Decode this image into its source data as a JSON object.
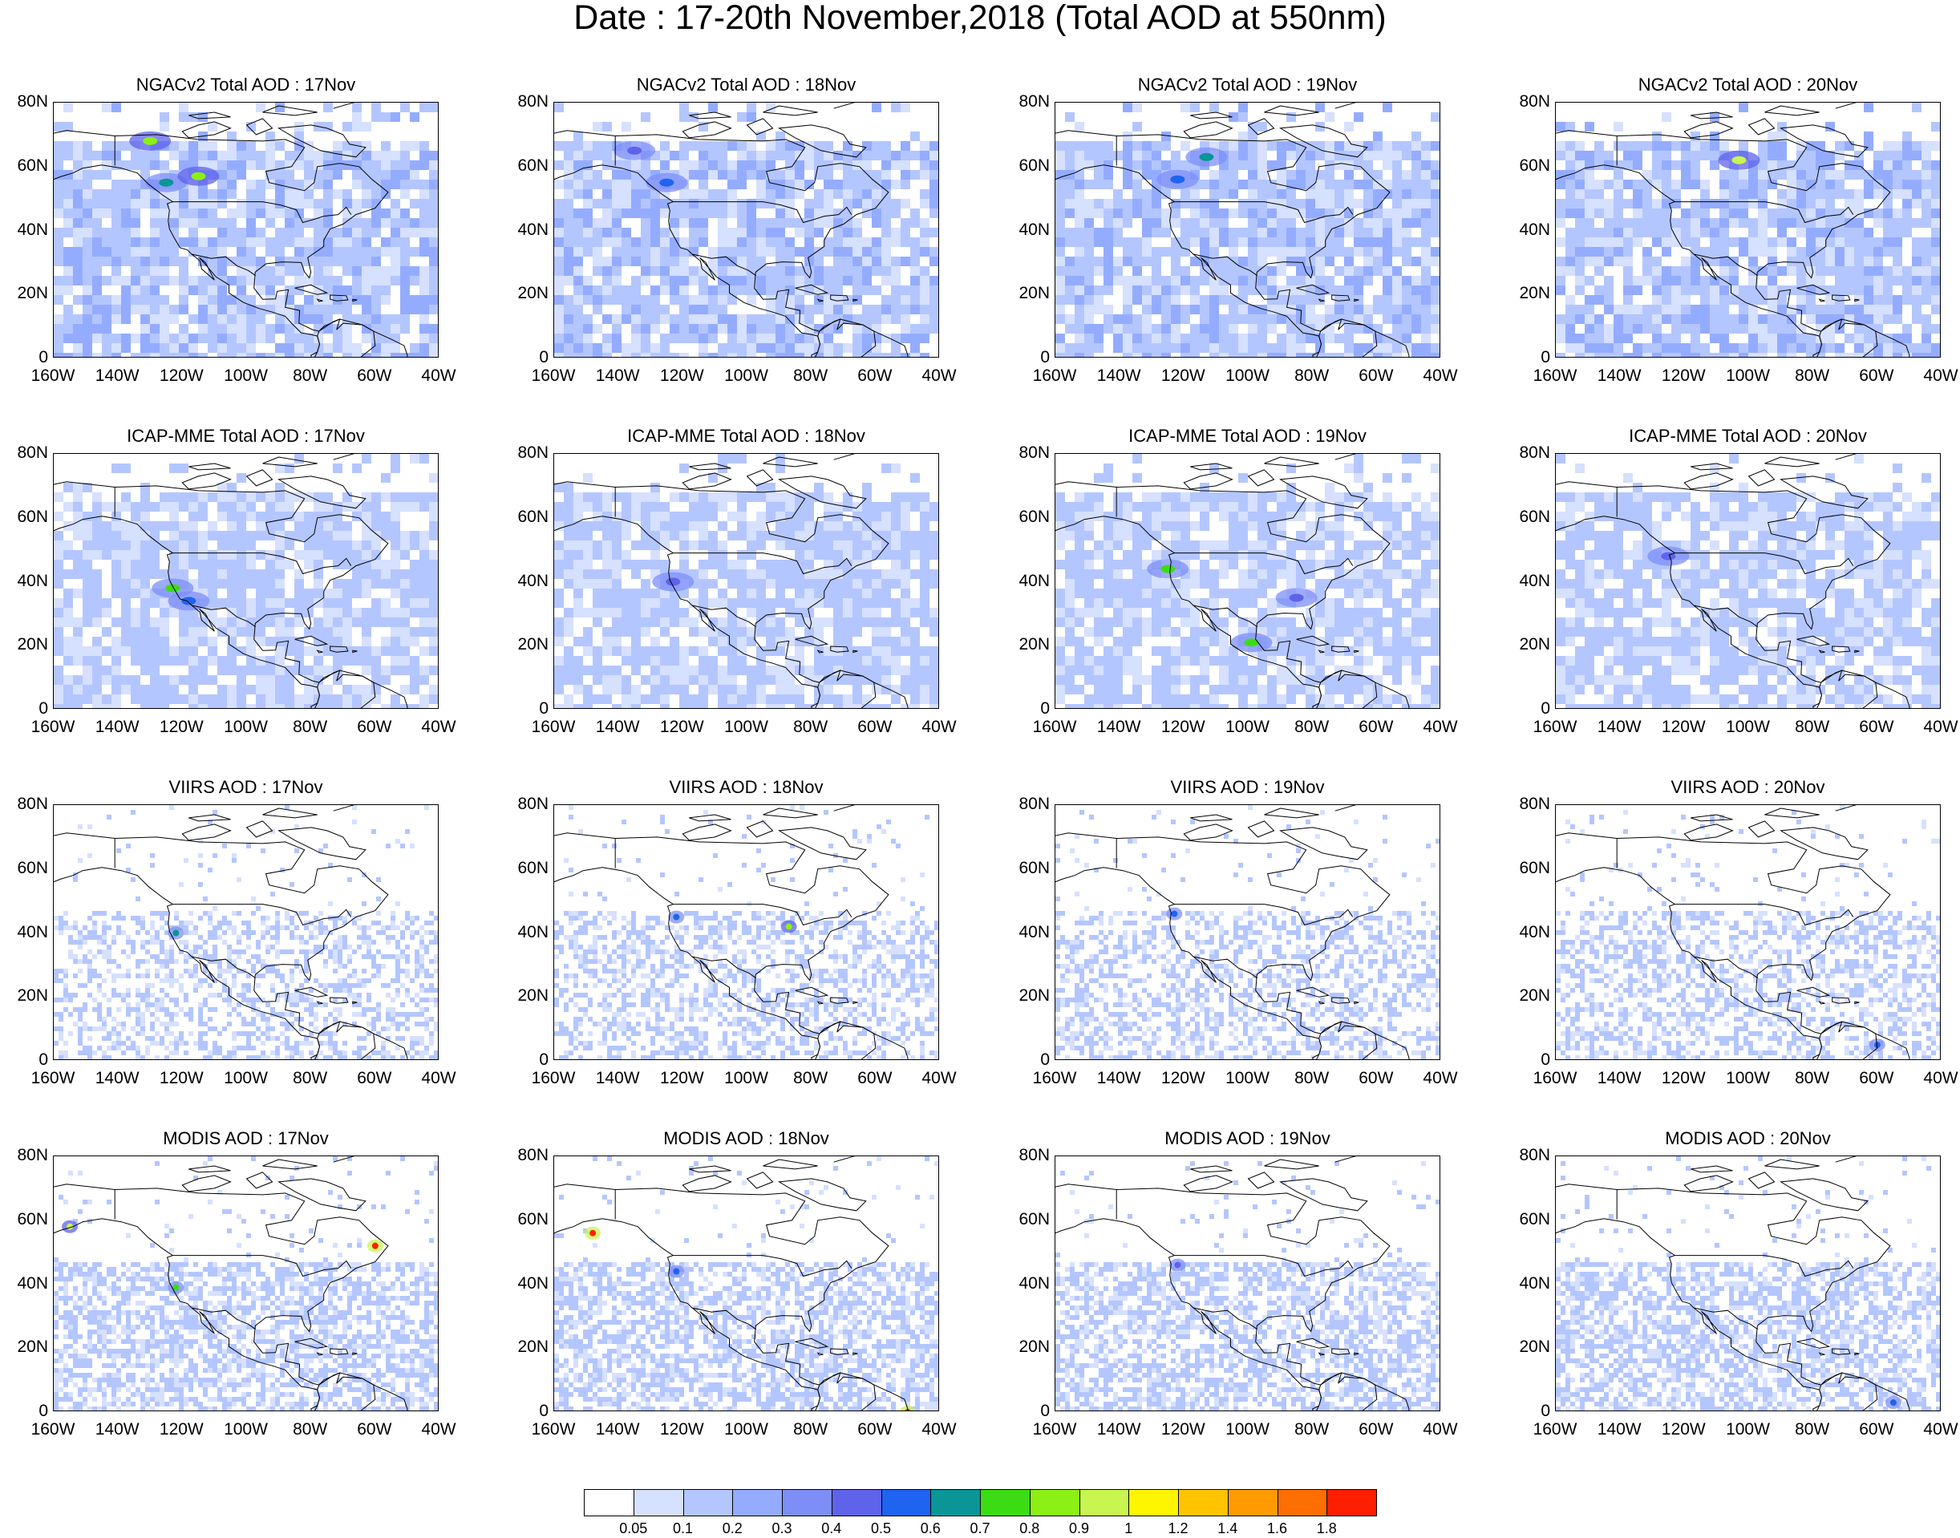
{
  "title": "Date : 17-20th November,2018 (Total AOD at 550nm)",
  "axes": {
    "lat_ticks": [
      "80N",
      "60N",
      "40N",
      "20N",
      "0"
    ],
    "lon_ticks": [
      "160W",
      "140W",
      "120W",
      "100W",
      "80W",
      "60W",
      "40W"
    ],
    "lat_range": [
      0,
      80
    ],
    "lon_range": [
      -160,
      -40
    ]
  },
  "rows": [
    {
      "source": "NGACv2",
      "titles": [
        "NGACv2 Total AOD : 17Nov",
        "NGACv2 Total AOD : 18Nov",
        "NGACv2 Total AOD : 19Nov",
        "NGACv2 Total AOD : 20Nov"
      ]
    },
    {
      "source": "ICAP-MME",
      "titles": [
        "ICAP-MME Total AOD : 17Nov",
        "ICAP-MME Total AOD : 18Nov",
        "ICAP-MME Total AOD : 19Nov",
        "ICAP-MME Total AOD : 20Nov"
      ]
    },
    {
      "source": "VIIRS",
      "titles": [
        "VIIRS AOD : 17Nov",
        "VIIRS AOD : 18Nov",
        "VIIRS AOD : 19Nov",
        "VIIRS AOD : 20Nov"
      ]
    },
    {
      "source": "MODIS",
      "titles": [
        "MODIS AOD : 17Nov",
        "MODIS AOD : 18Nov",
        "MODIS AOD : 19Nov",
        "MODIS AOD : 20Nov"
      ]
    }
  ],
  "colorbar": {
    "levels": [
      "0.05",
      "0.1",
      "0.2",
      "0.3",
      "0.4",
      "0.5",
      "0.6",
      "0.7",
      "0.8",
      "0.9",
      "1",
      "1.2",
      "1.4",
      "1.6",
      "1.8"
    ],
    "colors": [
      "#ffffff",
      "#d6e0ff",
      "#b4c6ff",
      "#94acff",
      "#7d8ff7",
      "#5f63ea",
      "#1e64f0",
      "#0a9696",
      "#3cdc14",
      "#8cf014",
      "#c8f550",
      "#fff500",
      "#ffc300",
      "#ff9b00",
      "#ff6e00",
      "#ff1e00"
    ]
  },
  "hotspots": {
    "NGACv2": [
      [
        {
          "lon": -130,
          "lat": 68,
          "v": 0.8
        },
        {
          "lon": -125,
          "lat": 55,
          "v": 0.6
        },
        {
          "lon": -115,
          "lat": 57,
          "v": 0.8
        }
      ],
      [
        {
          "lon": -125,
          "lat": 55,
          "v": 0.5
        },
        {
          "lon": -135,
          "lat": 65,
          "v": 0.4
        }
      ],
      [
        {
          "lon": -113,
          "lat": 63,
          "v": 0.6
        },
        {
          "lon": -122,
          "lat": 56,
          "v": 0.5
        }
      ],
      [
        {
          "lon": -103,
          "lat": 62,
          "v": 0.9
        }
      ]
    ],
    "ICAP-MME": [
      [
        {
          "lon": -123,
          "lat": 38,
          "v": 0.7
        },
        {
          "lon": -118,
          "lat": 34,
          "v": 0.5
        }
      ],
      [
        {
          "lon": -123,
          "lat": 40,
          "v": 0.4
        }
      ],
      [
        {
          "lon": -125,
          "lat": 44,
          "v": 0.7
        },
        {
          "lon": -99,
          "lat": 21,
          "v": 0.7
        },
        {
          "lon": -85,
          "lat": 35,
          "v": 0.4
        }
      ],
      [
        {
          "lon": -125,
          "lat": 48,
          "v": 0.4
        }
      ]
    ],
    "VIIRS": [
      [
        {
          "lon": -122,
          "lat": 40,
          "v": 0.6
        }
      ],
      [
        {
          "lon": -87,
          "lat": 42,
          "v": 0.8
        },
        {
          "lon": -122,
          "lat": 45,
          "v": 0.5
        }
      ],
      [
        {
          "lon": -123,
          "lat": 46,
          "v": 0.5
        }
      ],
      [
        {
          "lon": -60,
          "lat": 5,
          "v": 0.5
        }
      ]
    ],
    "MODIS": [
      [
        {
          "lon": -155,
          "lat": 58,
          "v": 0.9
        },
        {
          "lon": -122,
          "lat": 39,
          "v": 0.7
        },
        {
          "lon": -60,
          "lat": 52,
          "v": 1.8
        }
      ],
      [
        {
          "lon": -148,
          "lat": 56,
          "v": 1.8
        },
        {
          "lon": -50,
          "lat": 0,
          "v": 1.8
        },
        {
          "lon": -122,
          "lat": 44,
          "v": 0.5
        }
      ],
      [
        {
          "lon": -122,
          "lat": 46,
          "v": 0.4
        }
      ],
      [
        {
          "lon": -55,
          "lat": 3,
          "v": 0.5
        }
      ]
    ]
  }
}
